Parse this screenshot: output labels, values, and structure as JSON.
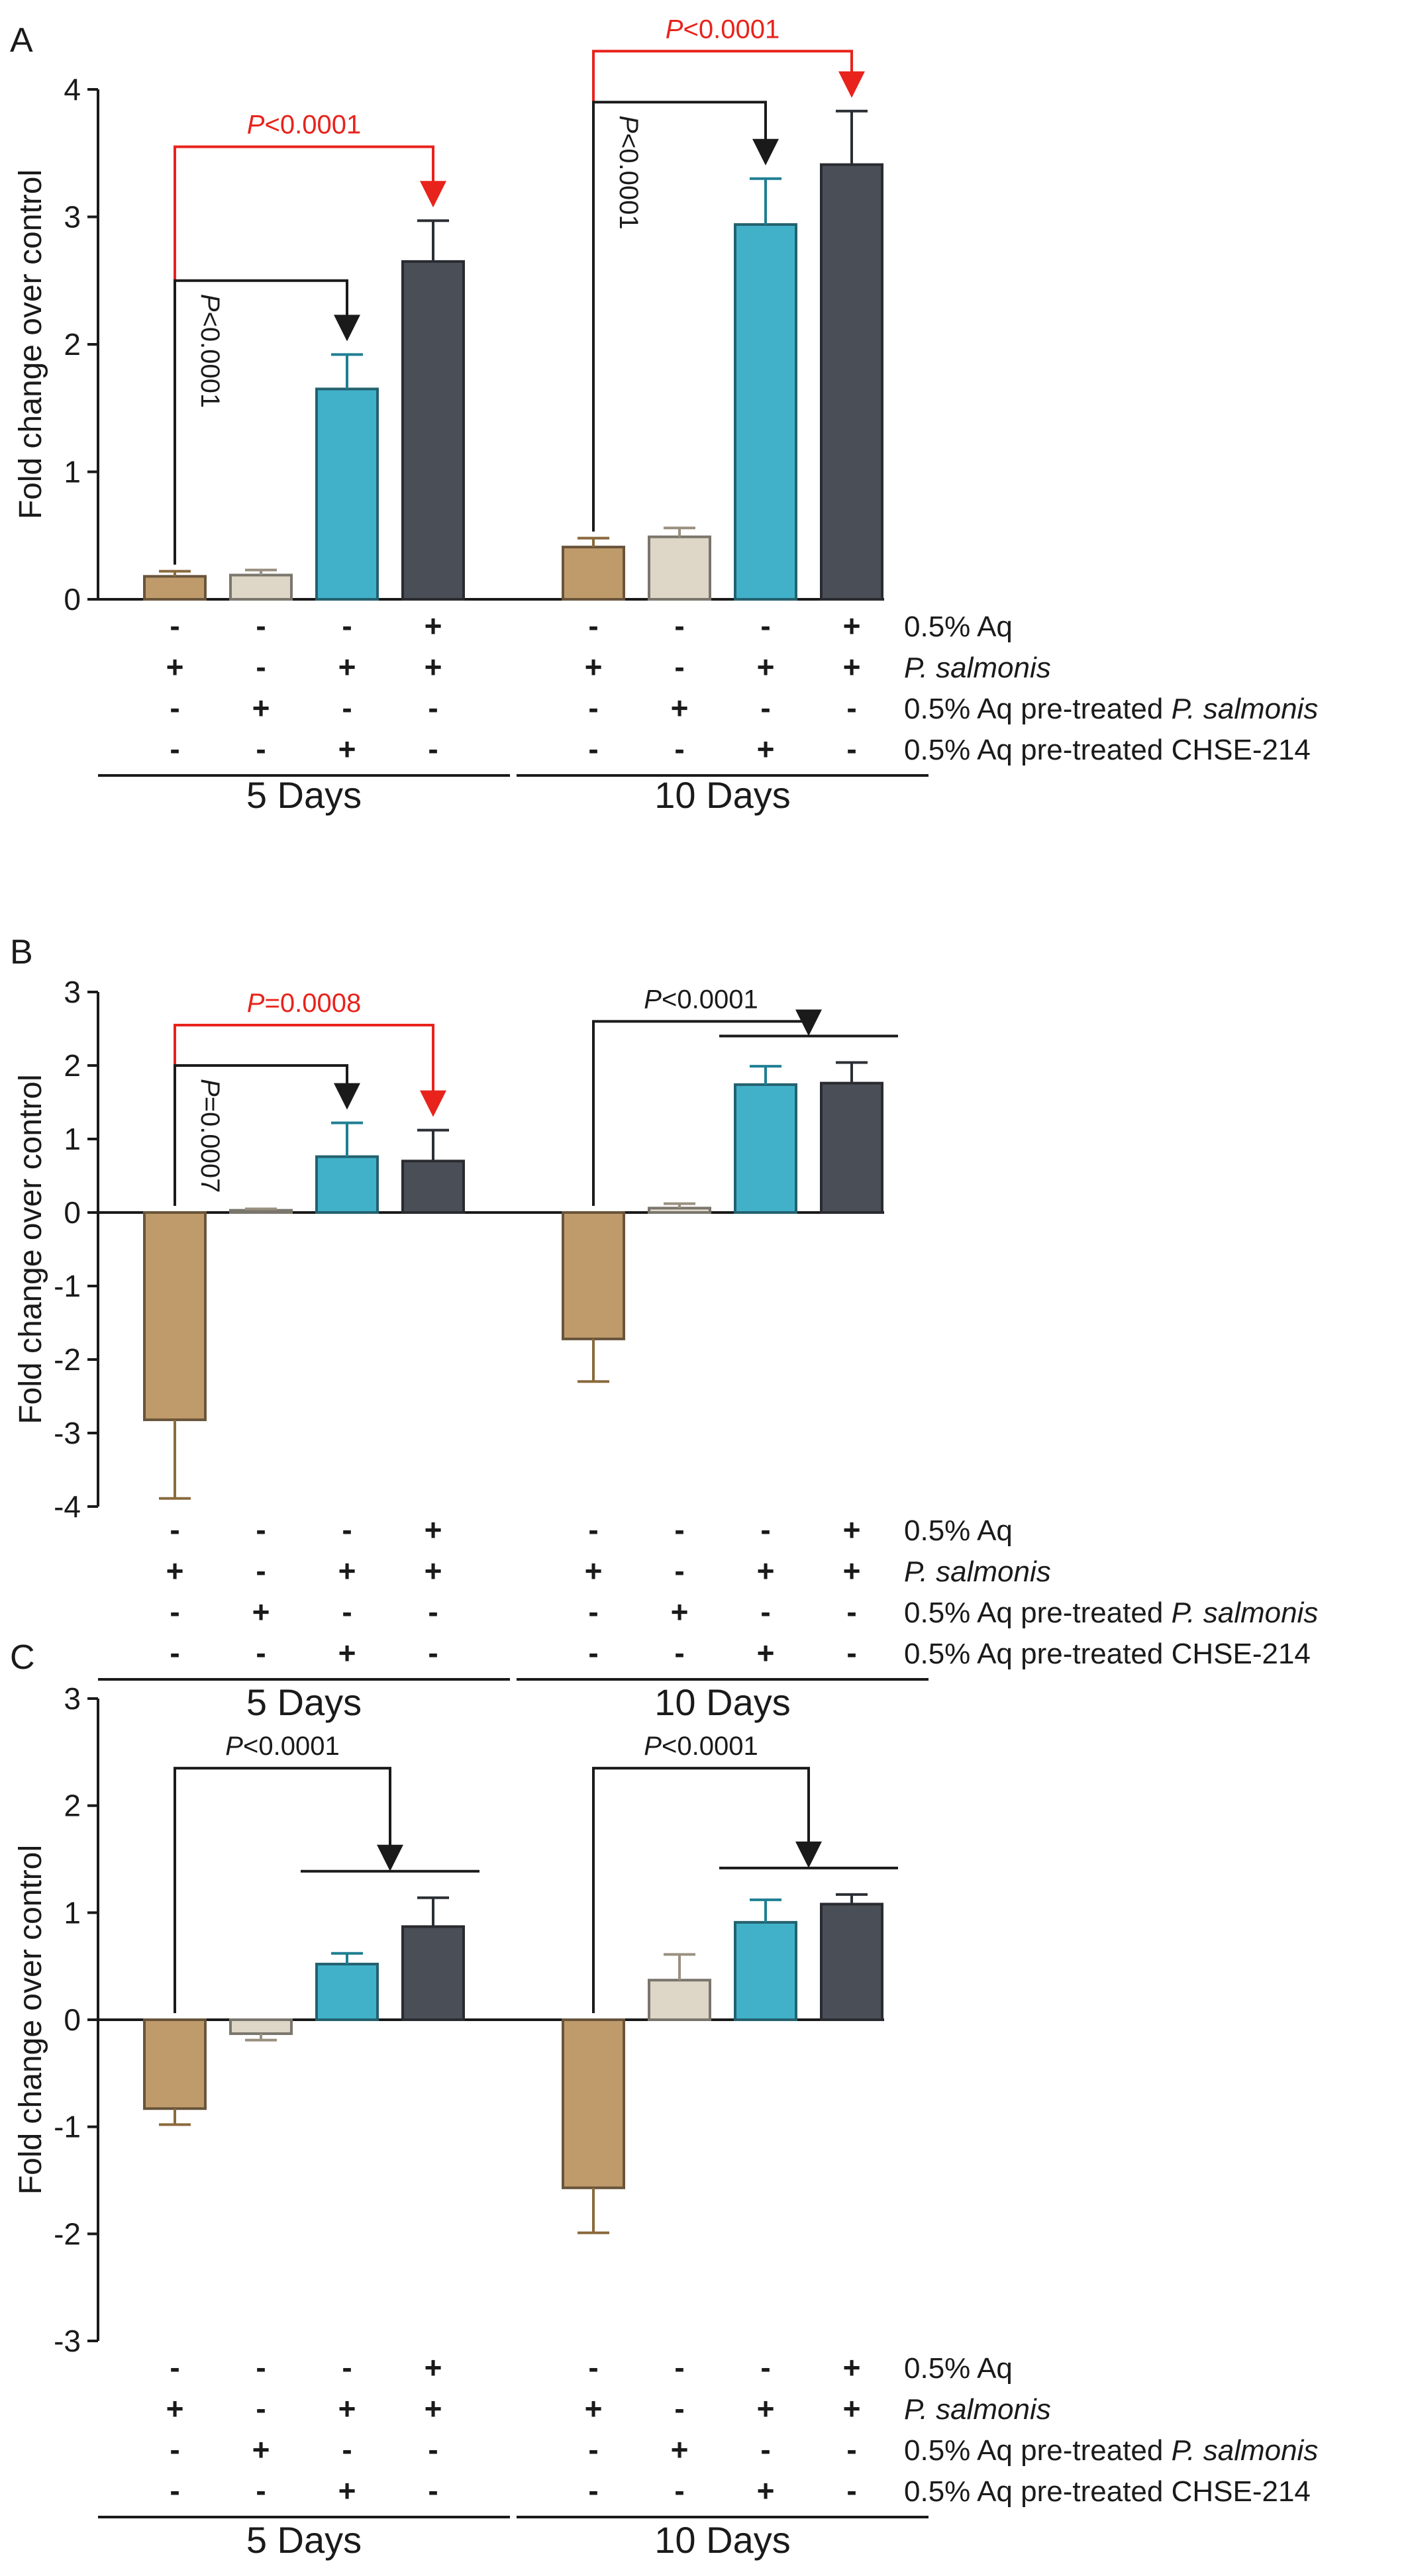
{
  "legend_colors": [
    "#bf9b6b",
    "#ded6c6",
    "#41b1c9",
    "#4a4f57"
  ],
  "row_labels": [
    {
      "plain": "0.5% Aq",
      "italic": ""
    },
    {
      "plain": "",
      "italic": "P. salmonis"
    },
    {
      "plain": "0.5% Aq pre-treated ",
      "italic": "P. salmonis"
    },
    {
      "plain": "0.5% Aq pre-treated CHSE-214",
      "italic": ""
    }
  ],
  "group_labels": [
    "5 Days",
    "10 Days"
  ],
  "chart_data": [
    {
      "panel": "A",
      "type": "bar",
      "ylabel": "Fold change over control",
      "ylim": [
        0,
        4
      ],
      "yticks": [
        0,
        1,
        2,
        3,
        4
      ],
      "groups": [
        {
          "name": "5 Days",
          "values": [
            0.18,
            0.19,
            1.65,
            2.65
          ],
          "errors": [
            0.04,
            0.04,
            0.27,
            0.32
          ],
          "signs": [
            [
              "-",
              "-",
              "-",
              "+"
            ],
            [
              "+",
              "-",
              "+",
              "+"
            ],
            [
              "-",
              "+",
              "-",
              "-"
            ],
            [
              "-",
              "-",
              "+",
              "-"
            ]
          ]
        },
        {
          "name": "10 Days",
          "values": [
            0.41,
            0.49,
            2.94,
            3.41
          ],
          "errors": [
            0.07,
            0.07,
            0.36,
            0.42
          ],
          "signs": [
            [
              "-",
              "-",
              "-",
              "+"
            ],
            [
              "+",
              "-",
              "+",
              "+"
            ],
            [
              "-",
              "+",
              "-",
              "-"
            ],
            [
              "-",
              "-",
              "+",
              "-"
            ]
          ]
        }
      ],
      "annotations": [
        {
          "text": "P<0.0001",
          "color": "#e8231c",
          "from": [
            0,
            0
          ],
          "to": [
            0,
            3
          ],
          "y": 3.55,
          "label_pos": "top"
        },
        {
          "text": "P<0.0001",
          "color": "#1a1a1a",
          "from": [
            0,
            0
          ],
          "to": [
            0,
            2
          ],
          "y": 2.5,
          "label_pos": "vertical"
        },
        {
          "text": "P<0.0001",
          "color": "#e8231c",
          "from": [
            1,
            0
          ],
          "to": [
            1,
            3
          ],
          "y": 4.3,
          "label_pos": "top"
        },
        {
          "text": "P<0.0001",
          "color": "#1a1a1a",
          "from": [
            1,
            0
          ],
          "to": [
            1,
            2
          ],
          "y": 3.9,
          "label_pos": "vertical"
        }
      ]
    },
    {
      "panel": "B",
      "type": "bar",
      "ylabel": "Fold change over control",
      "ylim": [
        -4,
        3
      ],
      "yticks": [
        -4,
        -3,
        -2,
        -1,
        0,
        1,
        2,
        3
      ],
      "groups": [
        {
          "name": "5 Days",
          "values": [
            -2.82,
            0.03,
            0.76,
            0.7
          ],
          "errors": [
            1.07,
            0.02,
            0.46,
            0.42
          ],
          "signs": [
            [
              "-",
              "-",
              "-",
              "+"
            ],
            [
              "+",
              "-",
              "+",
              "+"
            ],
            [
              "-",
              "+",
              "-",
              "-"
            ],
            [
              "-",
              "-",
              "+",
              "-"
            ]
          ]
        },
        {
          "name": "10 Days",
          "values": [
            -1.72,
            0.06,
            1.74,
            1.76
          ],
          "errors": [
            0.58,
            0.06,
            0.25,
            0.28
          ],
          "signs": [
            [
              "-",
              "-",
              "-",
              "+"
            ],
            [
              "+",
              "-",
              "+",
              "+"
            ],
            [
              "-",
              "+",
              "-",
              "-"
            ],
            [
              "-",
              "-",
              "+",
              "-"
            ]
          ]
        }
      ],
      "annotations": [
        {
          "text": "P=0.0008",
          "color": "#e8231c",
          "from": [
            0,
            0
          ],
          "to": [
            0,
            3
          ],
          "y": 2.55,
          "label_pos": "top"
        },
        {
          "text": "P=0.0007",
          "color": "#1a1a1a",
          "from": [
            0,
            0
          ],
          "to": [
            0,
            2
          ],
          "y": 2.0,
          "label_pos": "vertical"
        },
        {
          "text": "P<0.0001",
          "color": "#1a1a1a",
          "from": [
            1,
            0
          ],
          "to": [
            1,
            "2-3"
          ],
          "y": 2.6,
          "label_pos": "top"
        }
      ]
    },
    {
      "panel": "C",
      "type": "bar",
      "ylabel": "Fold change over control",
      "ylim": [
        -3,
        3
      ],
      "yticks": [
        -3,
        -2,
        -1,
        0,
        1,
        2,
        3
      ],
      "groups": [
        {
          "name": "5 Days",
          "values": [
            -0.83,
            -0.13,
            0.52,
            0.87
          ],
          "errors": [
            0.15,
            0.06,
            0.1,
            0.27
          ],
          "signs": [
            [
              "-",
              "-",
              "-",
              "+"
            ],
            [
              "+",
              "-",
              "+",
              "+"
            ],
            [
              "-",
              "+",
              "-",
              "-"
            ],
            [
              "-",
              "-",
              "+",
              "-"
            ]
          ]
        },
        {
          "name": "10 Days",
          "values": [
            -1.57,
            0.37,
            0.91,
            1.08
          ],
          "errors": [
            0.42,
            0.24,
            0.21,
            0.09
          ],
          "signs": [
            [
              "-",
              "-",
              "-",
              "+"
            ],
            [
              "+",
              "-",
              "+",
              "+"
            ],
            [
              "-",
              "+",
              "-",
              "-"
            ],
            [
              "-",
              "-",
              "+",
              "-"
            ]
          ]
        }
      ],
      "annotations": [
        {
          "text": "P<0.0001",
          "color": "#1a1a1a",
          "from": [
            0,
            0
          ],
          "to": [
            0,
            "2-3"
          ],
          "y": 2.35,
          "label_pos": "top"
        },
        {
          "text": "P<0.0001",
          "color": "#1a1a1a",
          "from": [
            1,
            0
          ],
          "to": [
            1,
            "2-3"
          ],
          "y": 2.35,
          "label_pos": "top"
        }
      ]
    }
  ]
}
